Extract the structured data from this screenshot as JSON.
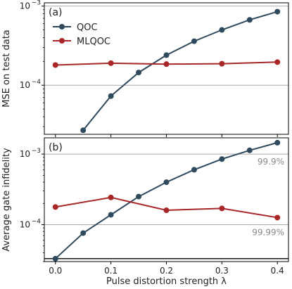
{
  "chart_data": [
    {
      "type": "line",
      "panel_label": "(a)",
      "xlabel": "",
      "ylabel": "MSE on test data",
      "yscale": "log",
      "ylim": [
        2.4e-05,
        0.0011
      ],
      "xlim": [
        -0.02,
        0.42
      ],
      "y_ticks": [
        {
          "value": 0.0001,
          "base": "10",
          "exp": "−4"
        },
        {
          "value": 0.001,
          "base": "10",
          "exp": "−3"
        }
      ],
      "hlines": [
        {
          "value": 0.0001,
          "color": "#aaaaaa"
        },
        {
          "value": 0.001,
          "color": "#aaaaaa"
        }
      ],
      "legend": {
        "position": "top-left"
      },
      "series": [
        {
          "name": "QOC",
          "color": "#2f4a5c",
          "x": [
            0.05,
            0.1,
            0.15,
            0.2,
            0.25,
            0.3,
            0.35,
            0.4
          ],
          "y": [
            2.7e-05,
            7.3e-05,
            0.000145,
            0.00024,
            0.00036,
            0.0005,
            0.00067,
            0.00085
          ]
        },
        {
          "name": "MLQOC",
          "color": "#a8282a",
          "x": [
            0.0,
            0.1,
            0.2,
            0.3,
            0.4
          ],
          "y": [
            0.00018,
            0.00019,
            0.000185,
            0.000187,
            0.000196
          ]
        }
      ]
    },
    {
      "type": "line",
      "panel_label": "(b)",
      "xlabel": "Pulse distortion strength λ",
      "ylabel": "Average gate infidelity",
      "yscale": "log",
      "ylim": [
        3e-05,
        0.0017
      ],
      "xlim": [
        -0.02,
        0.42
      ],
      "x_ticks": [
        "0.0",
        "0.1",
        "0.2",
        "0.3",
        "0.4"
      ],
      "x_tick_values": [
        0.0,
        0.1,
        0.2,
        0.3,
        0.4
      ],
      "y_ticks": [
        {
          "value": 0.0001,
          "base": "10",
          "exp": "−4"
        },
        {
          "value": 0.001,
          "base": "10",
          "exp": "−3"
        }
      ],
      "hlines": [
        {
          "value": 0.0001,
          "color": "#aaaaaa",
          "label": "99.99%"
        },
        {
          "value": 0.001,
          "color": "#aaaaaa",
          "label": "99.9%"
        },
        {
          "value": 3.3e-05,
          "color": "#000000"
        }
      ],
      "series": [
        {
          "name": "QOC",
          "color": "#2f4a5c",
          "x": [
            0.0,
            0.05,
            0.1,
            0.15,
            0.2,
            0.25,
            0.3,
            0.35,
            0.4
          ],
          "y": [
            3.3e-05,
            7.6e-05,
            0.000138,
            0.00025,
            0.0004,
            0.0006,
            0.00085,
            0.00113,
            0.00145
          ]
        },
        {
          "name": "MLQOC",
          "color": "#a8282a",
          "x": [
            0.0,
            0.1,
            0.2,
            0.3,
            0.4
          ],
          "y": [
            0.000178,
            0.000243,
            0.00016,
            0.00017,
            0.000126
          ]
        }
      ]
    }
  ]
}
